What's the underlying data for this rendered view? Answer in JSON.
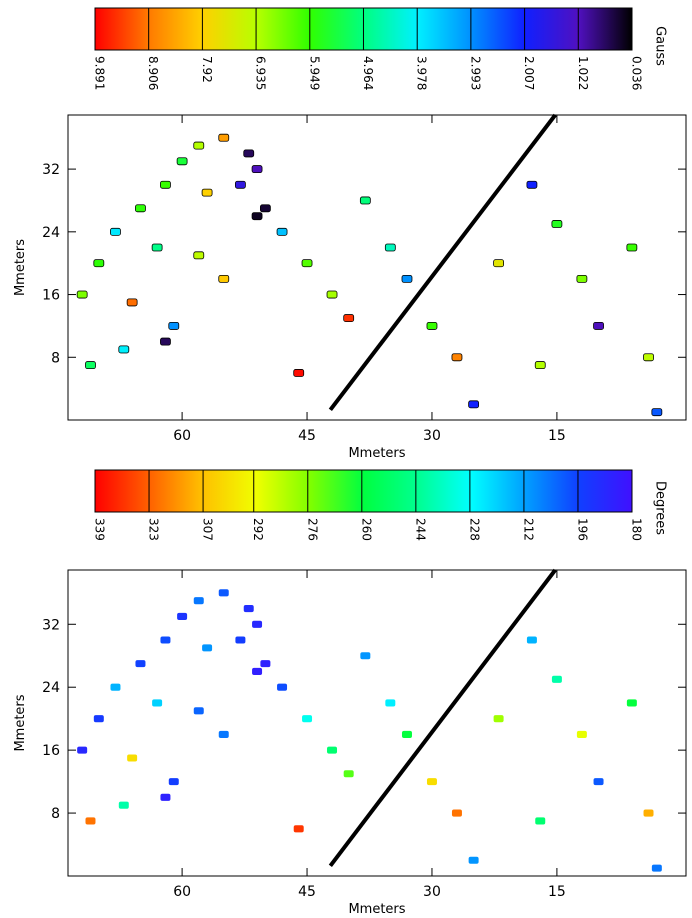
{
  "chart_data": [
    {
      "type": "heatmap",
      "colorbar": {
        "label": "Gauss",
        "ticks": [
          9.891,
          8.906,
          7.92,
          6.935,
          5.949,
          4.964,
          3.978,
          2.993,
          2.007,
          1.022,
          0.036
        ],
        "colors": [
          "#ff0000",
          "#ff7a00",
          "#ffd000",
          "#b8ff00",
          "#30ff00",
          "#00ff80",
          "#00f0ff",
          "#0090ff",
          "#1020ff",
          "#5010c0",
          "#000000"
        ]
      },
      "xlabel": "Mmeters",
      "ylabel": "Mmeters",
      "xlim": [
        73.7,
        -0.5
      ],
      "ylim": [
        0,
        38.9
      ],
      "xticks": [
        60,
        45,
        30,
        15
      ],
      "yticks": [
        8,
        16,
        24,
        32
      ],
      "cell_outline": true,
      "line": {
        "x": [
          42.2,
          15.2
        ],
        "y": [
          1.3,
          38.9
        ]
      },
      "x": [
        52,
        51,
        53,
        50,
        51,
        55,
        58,
        60,
        62,
        57,
        65,
        68,
        63,
        58,
        70,
        72,
        66,
        61,
        62,
        67,
        71,
        55,
        48,
        45,
        42,
        40,
        46,
        38,
        35,
        33,
        30,
        27,
        22,
        18,
        15,
        12,
        10,
        6,
        4,
        3,
        17,
        25
      ],
      "y": [
        34,
        32,
        30,
        27,
        26,
        36,
        35,
        33,
        30,
        29,
        27,
        24,
        22,
        21,
        20,
        16,
        15,
        12,
        10,
        9,
        7,
        18,
        24,
        20,
        16,
        13,
        6,
        28,
        22,
        18,
        12,
        8,
        20,
        30,
        25,
        18,
        12,
        22,
        8,
        1,
        7,
        2
      ],
      "values": [
        0.5,
        1.0,
        1.5,
        0.3,
        0.2,
        8.5,
        6.9,
        5.5,
        6.0,
        7.9,
        5.9,
        3.9,
        4.9,
        7.0,
        5.9,
        6.5,
        9.0,
        3.0,
        0.5,
        4.0,
        5.2,
        8.0,
        3.5,
        6.2,
        6.8,
        9.5,
        9.8,
        5.0,
        4.5,
        3.0,
        6.0,
        8.8,
        7.5,
        2.0,
        5.7,
        6.5,
        1.0,
        6.0,
        7.0,
        2.5,
        6.9,
        2.0
      ]
    },
    {
      "type": "heatmap",
      "colorbar": {
        "label": "Degrees",
        "ticks": [
          339,
          323,
          307,
          292,
          276,
          260,
          244,
          228,
          212,
          196,
          180
        ],
        "colors": [
          "#ff0000",
          "#ff6000",
          "#ffc000",
          "#f0ff00",
          "#80ff00",
          "#00ff40",
          "#00ff90",
          "#00ffff",
          "#00a0ff",
          "#1040ff",
          "#4010ff"
        ]
      },
      "xlabel": "Mmeters",
      "ylabel": "Mmeters",
      "xlim": [
        73.7,
        -0.5
      ],
      "ylim": [
        0,
        38.9
      ],
      "xticks": [
        60,
        45,
        30,
        15
      ],
      "yticks": [
        8,
        16,
        24,
        32
      ],
      "cell_outline": false,
      "line": {
        "x": [
          42.2,
          15.2
        ],
        "y": [
          1.3,
          38.9
        ]
      },
      "x": [
        52,
        51,
        53,
        50,
        51,
        55,
        58,
        60,
        62,
        57,
        65,
        68,
        63,
        58,
        70,
        72,
        66,
        61,
        62,
        67,
        71,
        55,
        48,
        45,
        42,
        40,
        46,
        38,
        35,
        33,
        30,
        27,
        22,
        18,
        15,
        12,
        10,
        6,
        4,
        3,
        17,
        25
      ],
      "y": [
        34,
        32,
        30,
        27,
        26,
        36,
        35,
        33,
        30,
        29,
        27,
        24,
        22,
        21,
        20,
        16,
        15,
        12,
        10,
        9,
        7,
        18,
        24,
        20,
        16,
        13,
        6,
        28,
        22,
        18,
        12,
        8,
        20,
        30,
        25,
        18,
        12,
        22,
        8,
        1,
        7,
        2
      ],
      "values": [
        190,
        188,
        195,
        186,
        185,
        200,
        205,
        192,
        198,
        210,
        196,
        215,
        220,
        202,
        194,
        188,
        300,
        195,
        186,
        240,
        320,
        205,
        198,
        230,
        250,
        270,
        330,
        210,
        225,
        260,
        300,
        320,
        280,
        215,
        240,
        290,
        200,
        260,
        310,
        205,
        250,
        210
      ]
    }
  ]
}
